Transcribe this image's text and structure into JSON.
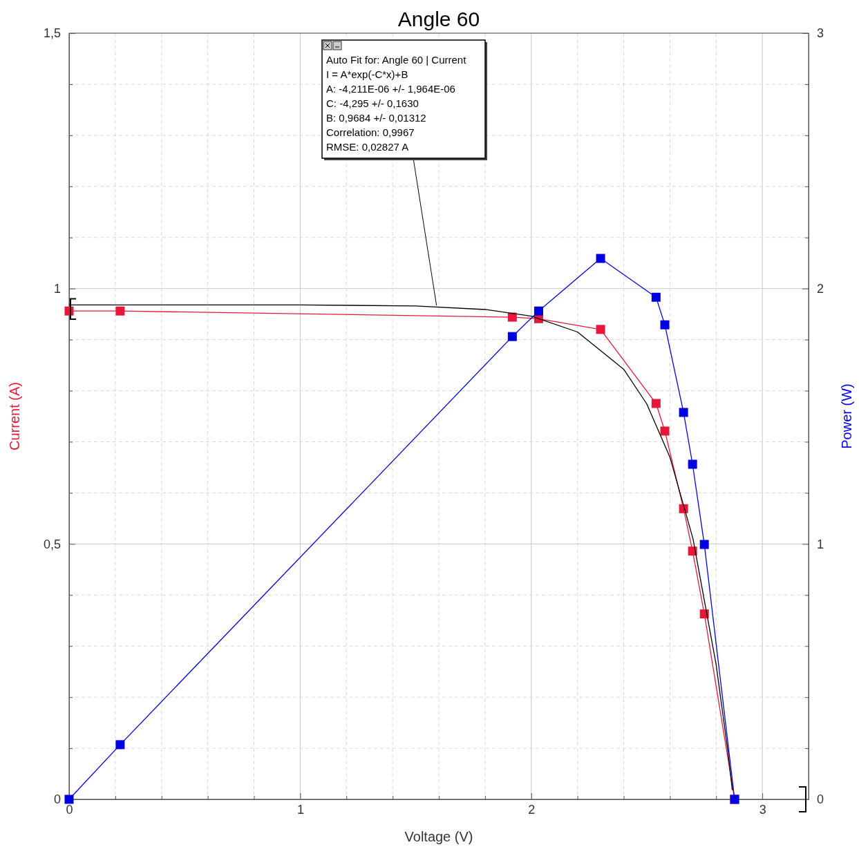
{
  "chart_data": {
    "type": "line",
    "title": "Angle 60",
    "xlabel": "Voltage (V)",
    "ylabel": "Current (A)",
    "y2label": "Power (W)",
    "xlim": [
      0,
      3.2
    ],
    "xticks": [
      0,
      {
        "value": 0.2,
        "label": null
      },
      {
        "value": 0.4,
        "label": null
      },
      {
        "value": 0.6,
        "label": null
      },
      {
        "value": 0.8,
        "label": null
      },
      1,
      {
        "value": 1.2,
        "label": null
      },
      {
        "value": 1.4,
        "label": null
      },
      {
        "value": 1.6,
        "label": null
      },
      {
        "value": 1.8,
        "label": null
      },
      2,
      {
        "value": 2.2,
        "label": null
      },
      {
        "value": 2.4,
        "label": null
      },
      {
        "value": 2.6,
        "label": null
      },
      {
        "value": 2.8,
        "label": null
      },
      3
    ],
    "ylim": [
      0,
      1.5
    ],
    "yticks": [
      0,
      {
        "value": 0.1,
        "label": null
      },
      {
        "value": 0.2,
        "label": null
      },
      {
        "value": 0.3,
        "label": null
      },
      {
        "value": 0.4,
        "label": null
      },
      {
        "value": 0.5,
        "label": "0,5"
      },
      {
        "value": 0.6,
        "label": null
      },
      {
        "value": 0.7,
        "label": null
      },
      {
        "value": 0.8,
        "label": null
      },
      {
        "value": 0.9,
        "label": null
      },
      1,
      {
        "value": 1.1,
        "label": null
      },
      {
        "value": 1.2,
        "label": null
      },
      {
        "value": 1.3,
        "label": null
      },
      {
        "value": 1.4,
        "label": null
      },
      {
        "value": 1.5,
        "label": "1,5"
      }
    ],
    "y2lim": [
      0,
      3
    ],
    "y2ticks": [
      0,
      {
        "value": 0.2,
        "label": null
      },
      {
        "value": 0.4,
        "label": null
      },
      {
        "value": 0.6,
        "label": null
      },
      {
        "value": 0.8,
        "label": null
      },
      1,
      {
        "value": 1.2,
        "label": null
      },
      {
        "value": 1.4,
        "label": null
      },
      {
        "value": 1.6,
        "label": null
      },
      {
        "value": 1.8,
        "label": null
      },
      2,
      {
        "value": 2.2,
        "label": null
      },
      {
        "value": 2.4,
        "label": null
      },
      {
        "value": 2.6,
        "label": null
      },
      {
        "value": 2.8,
        "label": null
      },
      3
    ],
    "grid": true,
    "marker": "square",
    "x": [
      0,
      0.221,
      1.918,
      2.032,
      2.3,
      2.54,
      2.578,
      2.659,
      2.698,
      2.749,
      2.88
    ],
    "series": [
      {
        "color": "#e8173a",
        "values": [
          0.956,
          0.956,
          0.944,
          0.941,
          0.92,
          0.775,
          0.721,
          0.569,
          0.486,
          0.363,
          0
        ]
      },
      {
        "color": "#0000e0",
        "axis": "y2",
        "values": [
          0,
          0.214,
          1.812,
          1.912,
          2.118,
          1.966,
          1.858,
          1.515,
          1.312,
          0.998,
          0
        ]
      },
      {
        "color": "#000000",
        "marker": "none",
        "x": [
          0,
          0.5,
          1,
          1.5,
          1.8,
          2.0,
          2.2,
          2.4,
          2.5,
          2.6,
          2.7,
          2.8,
          2.85,
          2.87
        ],
        "values": [
          0.968,
          0.968,
          0.968,
          0.966,
          0.959,
          0.946,
          0.915,
          0.842,
          0.774,
          0.67,
          0.51,
          0.264,
          0.097,
          0.018
        ]
      }
    ],
    "annotations": [
      {
        "text": "Auto Fit for: Angle 60 | Current\nI = A*exp(-C*x)+B\nA: -4,211E-06 +/- 1,964E-06\nC: -4,295 +/- 0,1630\nB: 0,9684 +/- 0,01312\nCorrelation: 0,9967\nRMSE: 0,02827 A",
        "x": 1.59,
        "y": 0.967
      }
    ]
  }
}
